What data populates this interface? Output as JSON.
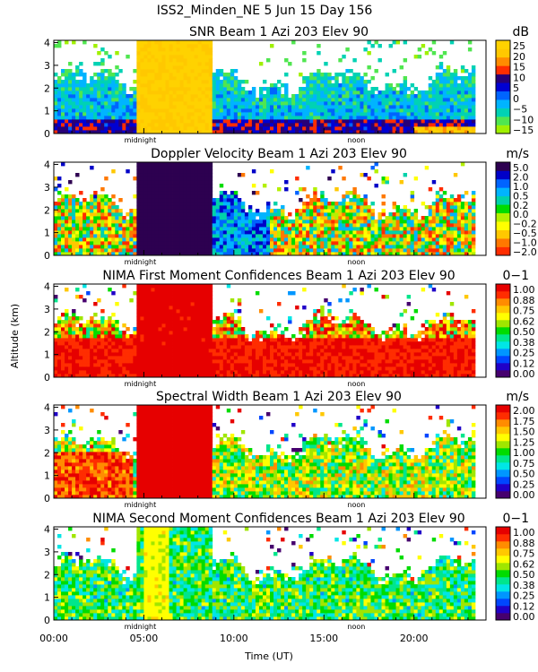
{
  "figure_title": "ISS2_Minden_NE    5 Jun 15 Day 156",
  "colors": {
    "jet": [
      "#46006e",
      "#2000c8",
      "#0046ff",
      "#0096ff",
      "#00e6e6",
      "#00e68c",
      "#00dc00",
      "#a0e600",
      "#ffff00",
      "#ffc800",
      "#ff8c00",
      "#ff2d00",
      "#e60000"
    ],
    "velocity": [
      "#ff2d00",
      "#ff7800",
      "#ffc800",
      "#ffff00",
      "#b4f000",
      "#00dc00",
      "#00d2aa",
      "#00b4ff",
      "#0064ff",
      "#0000c8",
      "#2d0050"
    ],
    "snr": [
      "#a0f000",
      "#50e650",
      "#00d2b4",
      "#00b4ff",
      "#0064ff",
      "#0000d2",
      "#280078",
      "#ff2d00",
      "#ff8c00",
      "#ffc800",
      "#ffd200"
    ]
  },
  "chart_data": [
    {
      "type": "heatmap",
      "title": "SNR Beam 1 Azi 203 Elev 90",
      "unit": "dB",
      "colorscale": "snr",
      "ylabel": "Altitude (km)",
      "xlabel": "Time (UT)",
      "xlim": [
        0,
        24
      ],
      "ylim": [
        0,
        4.1
      ],
      "yticks": [
        "0",
        "1",
        "2",
        "3",
        "4"
      ],
      "xticks": [
        "00:00",
        "05:00",
        "10:00",
        "15:00",
        "20:00"
      ],
      "annotations": [
        "midnight",
        "noon"
      ],
      "colorbar_ticks": [
        "25",
        "20",
        "15",
        "10",
        "5",
        "0",
        "−5",
        "−10",
        "−15"
      ],
      "colorbar_range": [
        -15,
        25
      ]
    },
    {
      "type": "heatmap",
      "title": "Doppler Velocity Beam 1 Azi 203 Elev 90",
      "unit": "m/s",
      "colorscale": "velocity",
      "ylabel": "Altitude (km)",
      "xlabel": "Time (UT)",
      "xlim": [
        0,
        24
      ],
      "ylim": [
        0,
        4.1
      ],
      "yticks": [
        "0",
        "1",
        "2",
        "3",
        "4"
      ],
      "xticks": [
        "00:00",
        "05:00",
        "10:00",
        "15:00",
        "20:00"
      ],
      "annotations": [
        "midnight",
        "noon"
      ],
      "colorbar_ticks": [
        "5.0",
        "2.0",
        "1.0",
        "0.5",
        "0.2",
        "0.0",
        "−0.2",
        "−0.5",
        "−1.0",
        "−2.0"
      ],
      "colorbar_range": [
        -2.0,
        5.0
      ]
    },
    {
      "type": "heatmap",
      "title": "NIMA First Moment Confidences Beam 1 Azi 203 Elev 90",
      "unit": "0−1",
      "colorscale": "jet",
      "ylabel": "Altitude (km)",
      "xlabel": "Time (UT)",
      "xlim": [
        0,
        24
      ],
      "ylim": [
        0,
        4.1
      ],
      "yticks": [
        "0",
        "1",
        "2",
        "3",
        "4"
      ],
      "xticks": [
        "00:00",
        "05:00",
        "10:00",
        "15:00",
        "20:00"
      ],
      "annotations": [
        "midnight",
        "noon"
      ],
      "colorbar_ticks": [
        "1.00",
        "0.88",
        "0.75",
        "0.62",
        "0.50",
        "0.38",
        "0.25",
        "0.12",
        "0.00"
      ],
      "colorbar_range": [
        0,
        1
      ]
    },
    {
      "type": "heatmap",
      "title": "Spectral Width Beam 1 Azi 203 Elev 90",
      "unit": "m/s",
      "colorscale": "jet",
      "ylabel": "Altitude (km)",
      "xlabel": "Time (UT)",
      "xlim": [
        0,
        24
      ],
      "ylim": [
        0,
        4.1
      ],
      "yticks": [
        "0",
        "1",
        "2",
        "3",
        "4"
      ],
      "xticks": [
        "00:00",
        "05:00",
        "10:00",
        "15:00",
        "20:00"
      ],
      "annotations": [
        "midnight",
        "noon"
      ],
      "colorbar_ticks": [
        "2.00",
        "1.75",
        "1.50",
        "1.25",
        "1.00",
        "0.75",
        "0.50",
        "0.25",
        "0.00"
      ],
      "colorbar_range": [
        0,
        2
      ]
    },
    {
      "type": "heatmap",
      "title": "NIMA Second Moment Confidences Beam 1 Azi 203 Elev 90",
      "unit": "0−1",
      "colorscale": "jet",
      "ylabel": "Altitude (km)",
      "xlabel": "Time (UT)",
      "xlim": [
        0,
        24
      ],
      "ylim": [
        0,
        4.1
      ],
      "yticks": [
        "0",
        "1",
        "2",
        "3",
        "4"
      ],
      "xticks": [
        "00:00",
        "05:00",
        "10:00",
        "15:00",
        "20:00"
      ],
      "annotations": [
        "midnight",
        "noon"
      ],
      "colorbar_ticks": [
        "1.00",
        "0.88",
        "0.75",
        "0.62",
        "0.50",
        "0.38",
        "0.25",
        "0.12",
        "0.00"
      ],
      "colorbar_range": [
        0,
        1
      ]
    }
  ],
  "x_axis": {
    "ticks": [
      "00:00",
      "05:00",
      "10:00",
      "15:00",
      "20:00"
    ],
    "label": "Time (UT)"
  },
  "y_axis_label": "Altitude (km)"
}
